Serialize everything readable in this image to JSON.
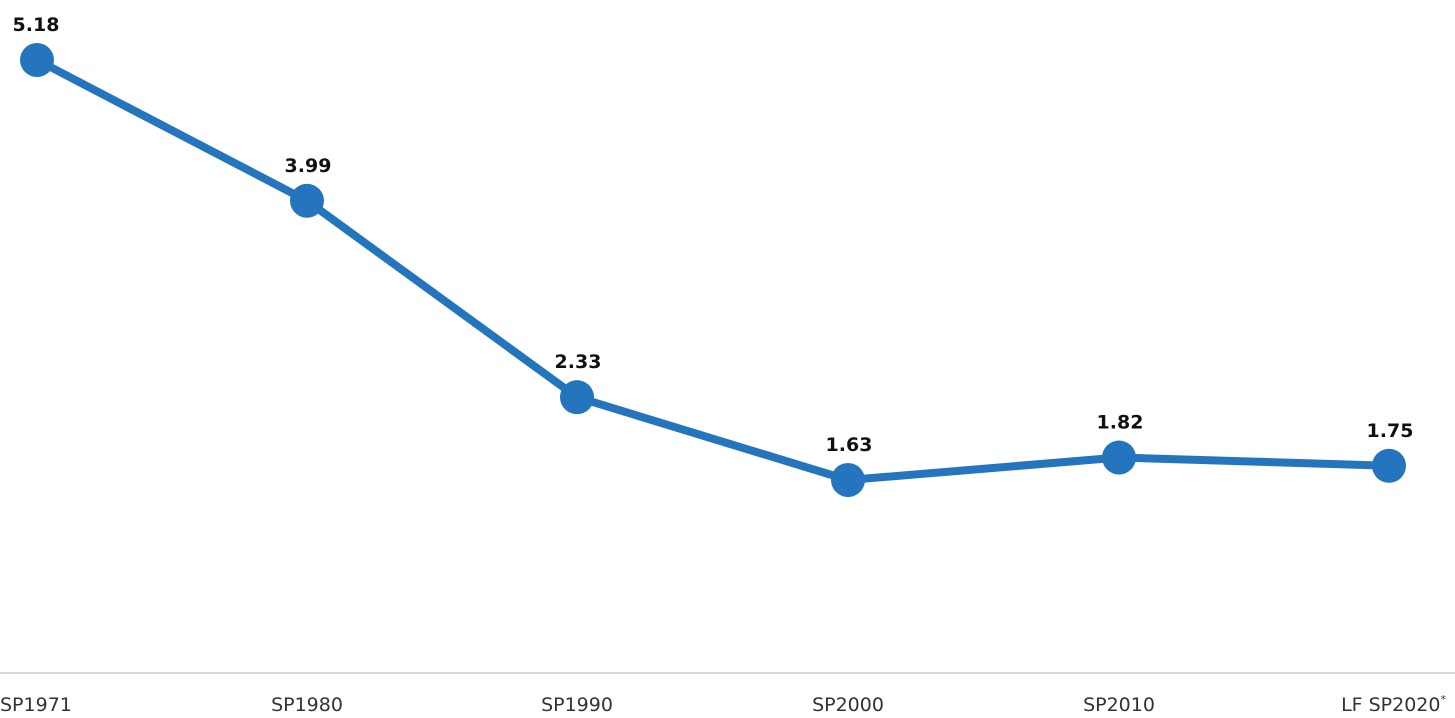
{
  "chart_data": {
    "type": "line",
    "title": "",
    "xlabel": "",
    "ylabel": "",
    "categories": [
      "SP1971",
      "SP1980",
      "SP1990",
      "SP2000",
      "SP2010",
      "LF SP2020"
    ],
    "category_superscripts": [
      "",
      "",
      "",
      "",
      "",
      "*"
    ],
    "series": [
      {
        "values": [
          5.18,
          3.99,
          2.33,
          1.63,
          1.82,
          1.75
        ],
        "labels": [
          "5.18",
          "3.99",
          "2.33",
          "1.63",
          "1.82",
          "1.75"
        ],
        "color": "#2474be"
      }
    ],
    "ylim": [
      0.0,
      5.5
    ],
    "grid": false,
    "legend": "none",
    "axis_color": "#d9d9d9"
  }
}
